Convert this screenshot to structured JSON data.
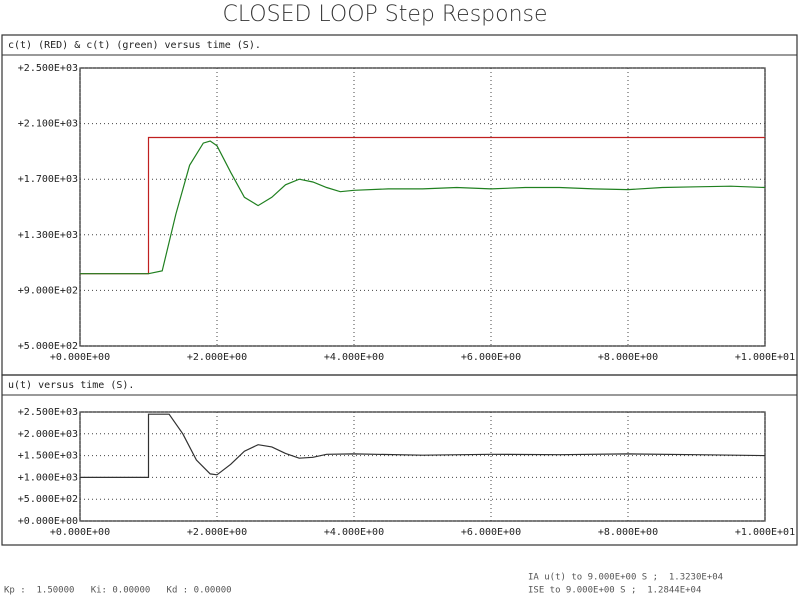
{
  "title": "CLOSED LOOP Step Response",
  "chart_data": [
    {
      "type": "line",
      "title": "c(t) (RED) & c(t) (green) versus time (S).",
      "x": [
        0,
        1.0,
        1.0,
        1.2,
        1.4,
        1.6,
        1.8,
        1.9,
        2.0,
        2.2,
        2.4,
        2.6,
        2.8,
        3.0,
        3.2,
        3.4,
        3.6,
        3.8,
        4.0,
        4.5,
        5,
        5.5,
        6,
        6.5,
        7,
        7.5,
        8,
        8.5,
        9,
        9.5,
        10
      ],
      "series": [
        {
          "name": "RED",
          "color": "#c02020",
          "values": [
            1020,
            1020,
            2000,
            2000,
            2000,
            2000,
            2000,
            2000,
            2000,
            2000,
            2000,
            2000,
            2000,
            2000,
            2000,
            2000,
            2000,
            2000,
            2000,
            2000,
            2000,
            2000,
            2000,
            2000,
            2000,
            2000,
            2000,
            2000,
            2000,
            2000,
            2000
          ]
        },
        {
          "name": "green",
          "color": "#208020",
          "values": [
            1020,
            1020,
            1020,
            1040,
            1450,
            1800,
            1960,
            1975,
            1940,
            1750,
            1570,
            1510,
            1570,
            1660,
            1700,
            1680,
            1640,
            1610,
            1620,
            1630,
            1630,
            1640,
            1630,
            1640,
            1640,
            1630,
            1625,
            1640,
            1645,
            1650,
            1640
          ]
        }
      ],
      "xlim": [
        0,
        10
      ],
      "xticks": [
        {
          "value": 0,
          "label": "+0.000E+00"
        },
        {
          "value": 2,
          "label": "+2.000E+00"
        },
        {
          "value": 4,
          "label": "+4.000E+00"
        },
        {
          "value": 6,
          "label": "+6.000E+00"
        },
        {
          "value": 8,
          "label": "+8.000E+00"
        },
        {
          "value": 10,
          "label": "+1.000E+01"
        }
      ],
      "ylim": [
        500,
        2500
      ],
      "yticks": [
        {
          "value": 2500,
          "label": "+2.500E+03"
        },
        {
          "value": 2100,
          "label": "+2.100E+03"
        },
        {
          "value": 1700,
          "label": "+1.700E+03"
        },
        {
          "value": 1300,
          "label": "+1.300E+03"
        },
        {
          "value": 900,
          "label": "+9.000E+02"
        },
        {
          "value": 500,
          "label": "+5.000E+02"
        }
      ],
      "grid": true
    },
    {
      "type": "line",
      "title": "u(t) versus time (S).",
      "x": [
        0,
        1.0,
        1.0,
        1.3,
        1.5,
        1.7,
        1.9,
        2.0,
        2.2,
        2.4,
        2.6,
        2.8,
        3.0,
        3.2,
        3.4,
        3.6,
        4,
        5,
        6,
        7,
        8,
        9,
        10
      ],
      "series": [
        {
          "name": "u(t)",
          "color": "#303030",
          "values": [
            1000,
            1000,
            2450,
            2450,
            2000,
            1400,
            1080,
            1060,
            1300,
            1600,
            1750,
            1700,
            1550,
            1440,
            1460,
            1530,
            1540,
            1510,
            1530,
            1520,
            1540,
            1520,
            1500
          ]
        }
      ],
      "xlim": [
        0,
        10
      ],
      "xticks": [
        {
          "value": 0,
          "label": "+0.000E+00"
        },
        {
          "value": 2,
          "label": "+2.000E+00"
        },
        {
          "value": 4,
          "label": "+4.000E+00"
        },
        {
          "value": 6,
          "label": "+6.000E+00"
        },
        {
          "value": 8,
          "label": "+8.000E+00"
        },
        {
          "value": 10,
          "label": "+1.000E+01"
        }
      ],
      "ylim": [
        0,
        2500
      ],
      "yticks": [
        {
          "value": 2500,
          "label": "+2.500E+03"
        },
        {
          "value": 2000,
          "label": "+2.000E+03"
        },
        {
          "value": 1500,
          "label": "+1.500E+03"
        },
        {
          "value": 1000,
          "label": "+1.000E+03"
        },
        {
          "value": 500,
          "label": "+5.000E+02"
        },
        {
          "value": 0,
          "label": "+0.000E+00"
        }
      ],
      "grid": true
    }
  ],
  "footer": {
    "gains": "Kp :  1.50000   Ki: 0.00000   Kd : 0.00000",
    "integrals": [
      "IA u(t) to 9.000E+00 S ;  1.3230E+04",
      "ISE to 9.000E+00 S ;  1.2844E+04"
    ]
  }
}
